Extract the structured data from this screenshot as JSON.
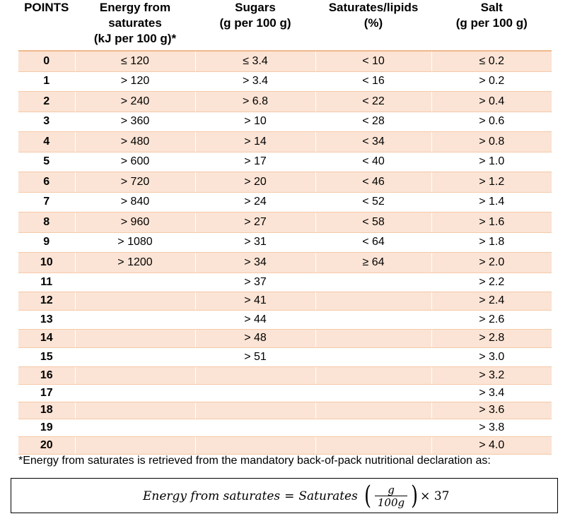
{
  "table": {
    "headers": {
      "points": "POINTS",
      "energy_l1": "Energy from",
      "energy_l2": "saturates",
      "energy_l3": "(kJ per 100 g)*",
      "sugars_l1": "Sugars",
      "sugars_l2": "(g per 100 g)",
      "lipids_l1": "Saturates/lipids",
      "lipids_l2": "(%)",
      "salt_l1": "Salt",
      "salt_l2": "(g per 100 g)"
    },
    "rows": [
      {
        "points": "0",
        "energy": "≤ 120",
        "sugars": "≤ 3.4",
        "lipids": "< 10",
        "salt": "≤ 0.2"
      },
      {
        "points": "1",
        "energy": "> 120",
        "sugars": "> 3.4",
        "lipids": "< 16",
        "salt": "> 0.2"
      },
      {
        "points": "2",
        "energy": "> 240",
        "sugars": "> 6.8",
        "lipids": "< 22",
        "salt": "> 0.4"
      },
      {
        "points": "3",
        "energy": "> 360",
        "sugars": "> 10",
        "lipids": "< 28",
        "salt": "> 0.6"
      },
      {
        "points": "4",
        "energy": "> 480",
        "sugars": "> 14",
        "lipids": "< 34",
        "salt": "> 0.8"
      },
      {
        "points": "5",
        "energy": "> 600",
        "sugars": "> 17",
        "lipids": "< 40",
        "salt": "> 1.0"
      },
      {
        "points": "6",
        "energy": "> 720",
        "sugars": "> 20",
        "lipids": "< 46",
        "salt": "> 1.2"
      },
      {
        "points": "7",
        "energy": "> 840",
        "sugars": "> 24",
        "lipids": "< 52",
        "salt": "> 1.4"
      },
      {
        "points": "8",
        "energy": "> 960",
        "sugars": "> 27",
        "lipids": "< 58",
        "salt": "> 1.6"
      },
      {
        "points": "9",
        "energy": "> 1080",
        "sugars": "> 31",
        "lipids": "< 64",
        "salt": "> 1.8"
      },
      {
        "points": "10",
        "energy": "> 1200",
        "sugars": "> 34",
        "lipids": "≥ 64",
        "salt": "> 2.0"
      },
      {
        "points": "11",
        "energy": "",
        "sugars": "> 37",
        "lipids": "",
        "salt": "> 2.2"
      },
      {
        "points": "12",
        "energy": "",
        "sugars": "> 41",
        "lipids": "",
        "salt": "> 2.4"
      },
      {
        "points": "13",
        "energy": "",
        "sugars": "> 44",
        "lipids": "",
        "salt": "> 2.6"
      },
      {
        "points": "14",
        "energy": "",
        "sugars": "> 48",
        "lipids": "",
        "salt": "> 2.8"
      },
      {
        "points": "15",
        "energy": "",
        "sugars": "> 51",
        "lipids": "",
        "salt": "> 3.0"
      },
      {
        "points": "16",
        "energy": "",
        "sugars": "",
        "lipids": "",
        "salt": "> 3.2"
      },
      {
        "points": "17",
        "energy": "",
        "sugars": "",
        "lipids": "",
        "salt": "> 3.4"
      },
      {
        "points": "18",
        "energy": "",
        "sugars": "",
        "lipids": "",
        "salt": "> 3.6"
      },
      {
        "points": "19",
        "energy": "",
        "sugars": "",
        "lipids": "",
        "salt": "> 3.8"
      },
      {
        "points": "20",
        "energy": "",
        "sugars": "",
        "lipids": "",
        "salt": "> 4.0"
      }
    ]
  },
  "footnote": "*Energy from saturates is retrieved from the mandatory back-of-pack nutritional declaration as:",
  "formula": {
    "lhs": "Energy from saturates",
    "eq": "=",
    "rhs_word": "Saturates",
    "frac_num": "g",
    "frac_den": "100g",
    "tail": "× 37"
  },
  "colors": {
    "shaded_row": "#fbe4d5",
    "header_rule": "#f0b88c"
  }
}
